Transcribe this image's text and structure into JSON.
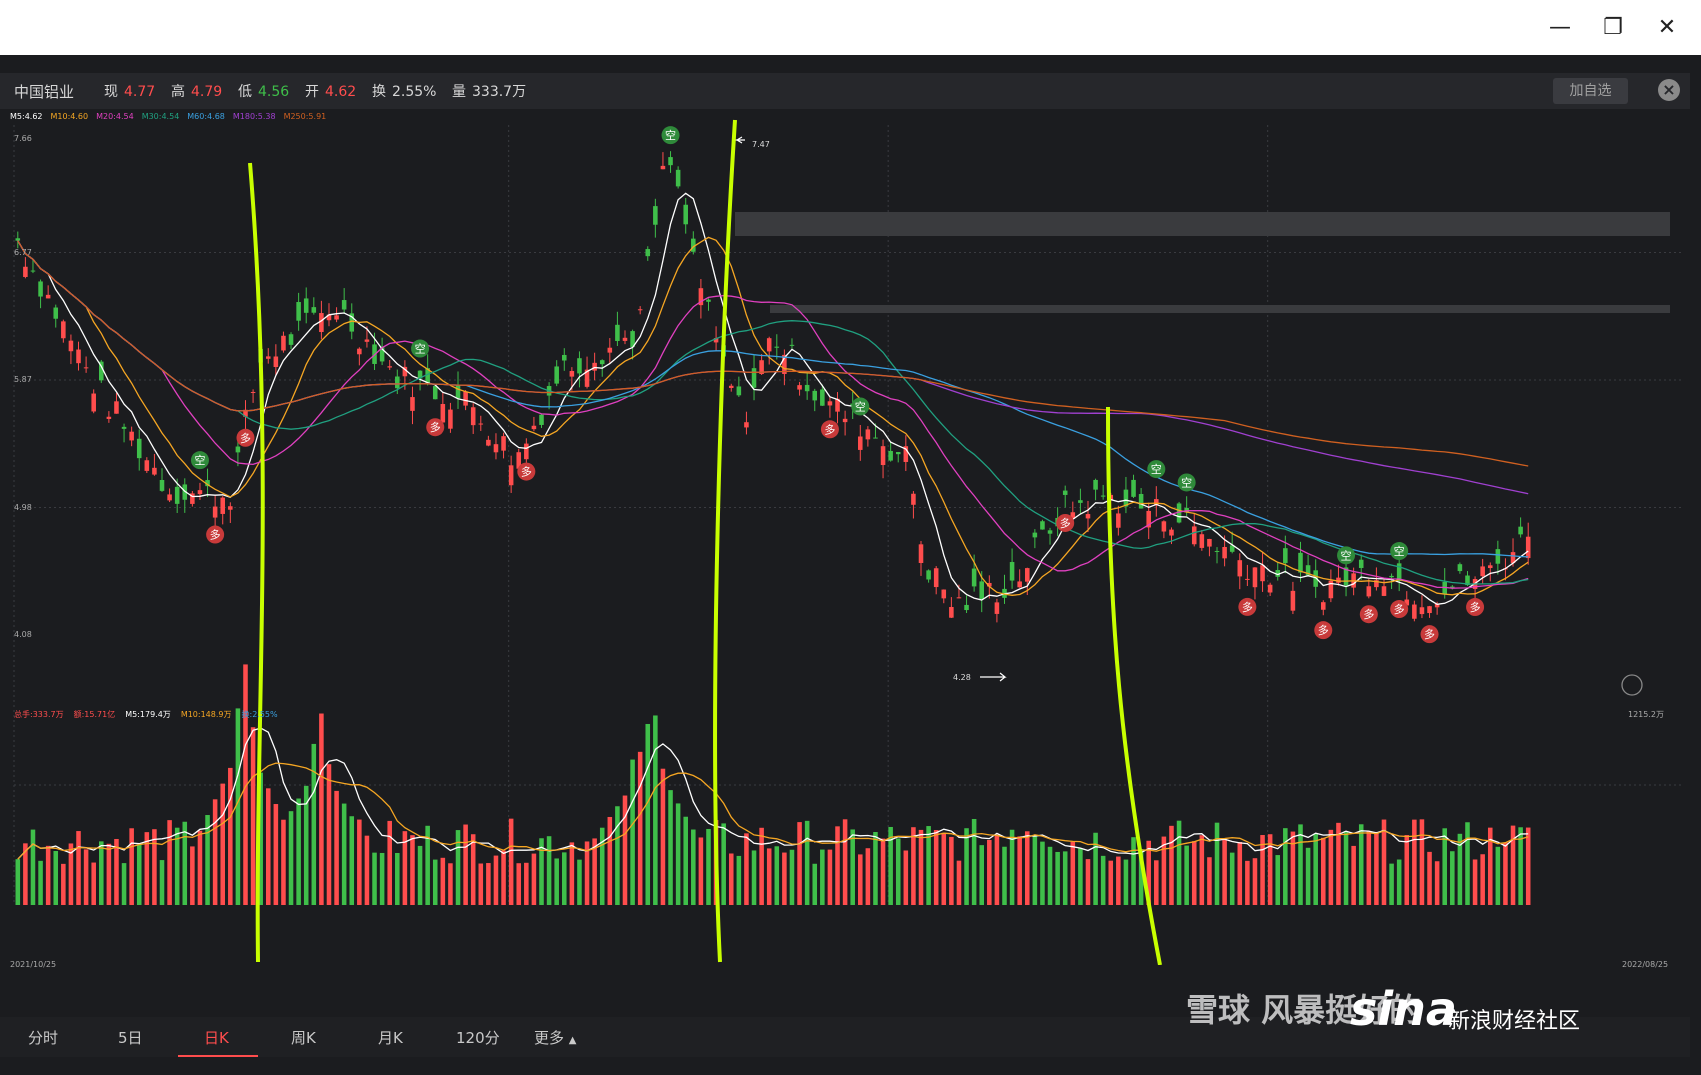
{
  "window": {
    "minimize": "—",
    "restore": "❐",
    "close": "✕"
  },
  "stock": {
    "name": "中国铝业",
    "now_label": "现",
    "now": "4.77",
    "high_label": "高",
    "high": "4.79",
    "low_label": "低",
    "low": "4.56",
    "open_label": "开",
    "open": "4.62",
    "turnover_label": "换",
    "turnover": "2.55%",
    "volume_label": "量",
    "volume": "333.7万",
    "add_watch": "加自选"
  },
  "ma_legend": [
    "M5:4.62",
    "M10:4.60",
    "M20:4.54",
    "M30:4.54",
    "M60:4.68",
    "M180:5.38",
    "M250:5.91"
  ],
  "price_axis": [
    "7.66",
    "6.77",
    "5.87",
    "4.98",
    "4.08"
  ],
  "annotations": {
    "peak": "7.47",
    "trough": "4.28",
    "vol_max": "1215.2万",
    "date_start": "2021/10/25",
    "date_end": "2022/08/25"
  },
  "vol_legend": [
    "总手:333.7万",
    "额:15.71亿",
    "M5:179.4万",
    "M10:148.9万",
    "换:2.55%"
  ],
  "signals": {
    "buy": "多",
    "sell": "空"
  },
  "tabs": [
    "分时",
    "5日",
    "日K",
    "周K",
    "月K",
    "120分",
    "更多"
  ],
  "tab_more_arrow": "▲",
  "watermark": {
    "xueqiu": "雪球",
    "fengbao": "风暴挺好的",
    "sina": "sina",
    "community": "新浪财经社区"
  },
  "colors": {
    "up": "#ff4d4d",
    "down": "#3fbf4a",
    "ma5": "#ffffff",
    "ma10": "#f5a623",
    "ma20": "#e040c0",
    "ma30": "#20a080",
    "ma60": "#3aa0e0",
    "ma180": "#a040d0",
    "ma250": "#d06020",
    "annotation": "#c8ff00"
  },
  "chart_data": {
    "type": "candlestick",
    "title": "中国铝业 日K",
    "x_range": [
      "2021/10/25",
      "2022/08/25"
    ],
    "ylim": [
      4.08,
      7.66
    ],
    "price_anchors": [
      {
        "t": 0.0,
        "v": 6.85
      },
      {
        "t": 0.05,
        "v": 5.85
      },
      {
        "t": 0.1,
        "v": 5.1
      },
      {
        "t": 0.14,
        "v": 5.05
      },
      {
        "t": 0.16,
        "v": 6.0
      },
      {
        "t": 0.21,
        "v": 6.4
      },
      {
        "t": 0.25,
        "v": 5.9
      },
      {
        "t": 0.3,
        "v": 5.7
      },
      {
        "t": 0.33,
        "v": 5.3
      },
      {
        "t": 0.36,
        "v": 5.95
      },
      {
        "t": 0.41,
        "v": 6.2
      },
      {
        "t": 0.43,
        "v": 7.47
      },
      {
        "t": 0.46,
        "v": 6.2
      },
      {
        "t": 0.48,
        "v": 5.6
      },
      {
        "t": 0.5,
        "v": 6.2
      },
      {
        "t": 0.53,
        "v": 5.75
      },
      {
        "t": 0.56,
        "v": 5.55
      },
      {
        "t": 0.59,
        "v": 5.3
      },
      {
        "t": 0.6,
        "v": 4.6
      },
      {
        "t": 0.62,
        "v": 4.28
      },
      {
        "t": 0.66,
        "v": 4.45
      },
      {
        "t": 0.69,
        "v": 4.95
      },
      {
        "t": 0.72,
        "v": 5.05
      },
      {
        "t": 0.77,
        "v": 4.9
      },
      {
        "t": 0.81,
        "v": 4.6
      },
      {
        "t": 0.86,
        "v": 4.4
      },
      {
        "t": 0.9,
        "v": 4.55
      },
      {
        "t": 0.93,
        "v": 4.35
      },
      {
        "t": 0.97,
        "v": 4.5
      },
      {
        "t": 1.0,
        "v": 4.77
      }
    ],
    "volume_peaks_wan": [
      {
        "t": 0.15,
        "v": 1215.2
      },
      {
        "t": 0.2,
        "v": 980
      },
      {
        "t": 0.41,
        "v": 830
      },
      {
        "t": 0.42,
        "v": 1030
      },
      {
        "t": 0.66,
        "v": 400
      },
      {
        "t": 1.0,
        "v": 333.7
      }
    ]
  }
}
